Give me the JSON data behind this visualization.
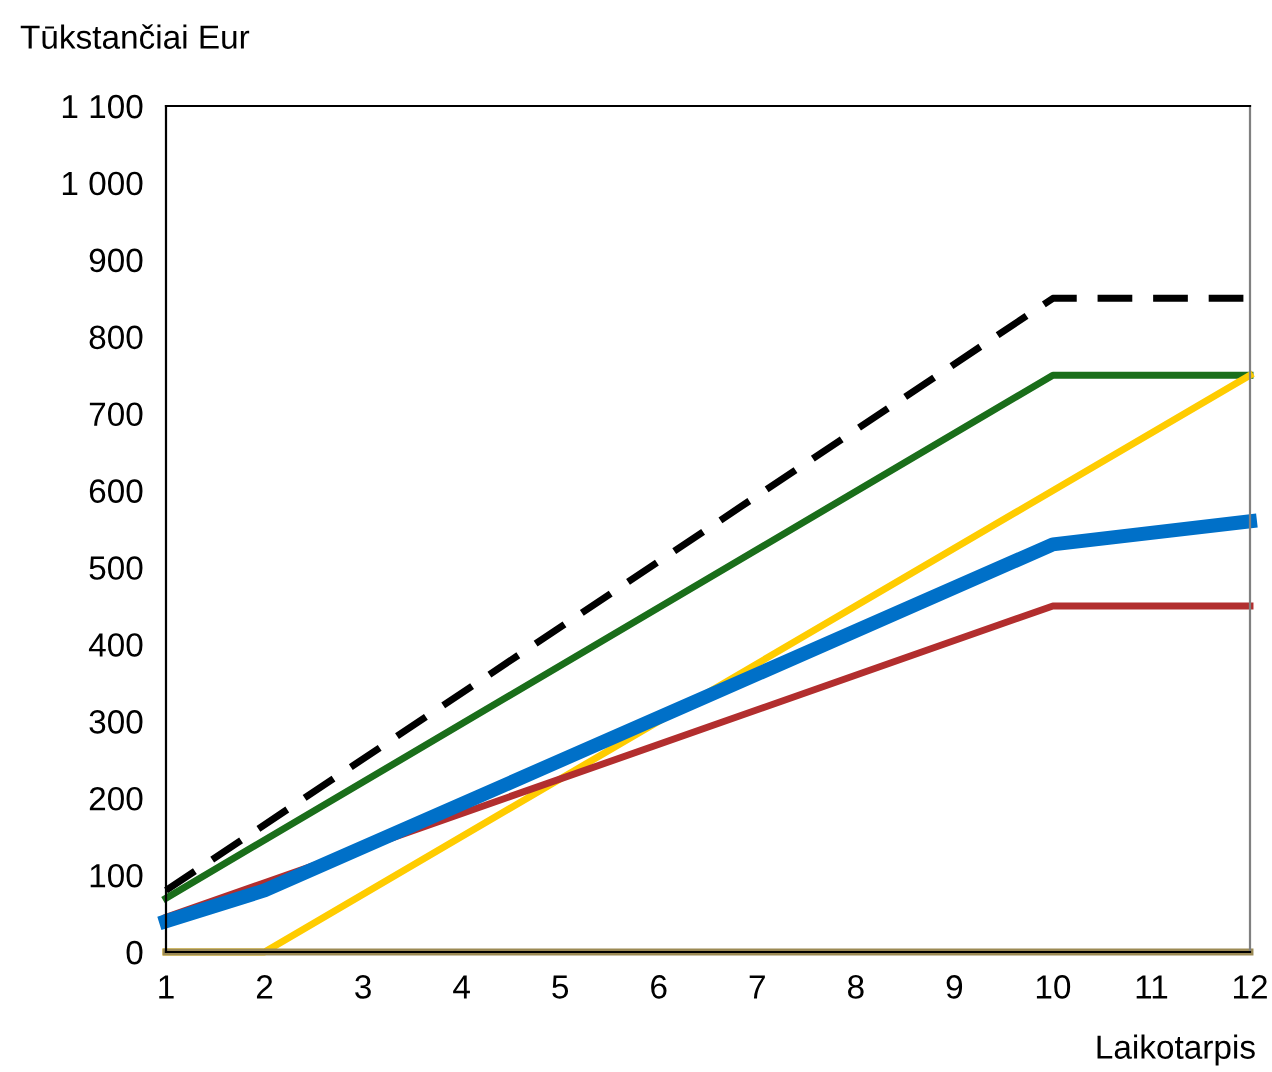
{
  "chart_data": {
    "type": "line",
    "ylabel": "Tūkstančiai Eur",
    "xlabel": "Laikotarpis",
    "xlim": [
      1,
      12
    ],
    "xticks": [
      1,
      2,
      3,
      4,
      5,
      6,
      7,
      8,
      9,
      10,
      11,
      12
    ],
    "ylim": [
      0,
      1100
    ],
    "yticks": [
      0,
      100,
      200,
      300,
      400,
      500,
      600,
      700,
      800,
      900,
      {
        "value": 1000,
        "label": "1 000"
      },
      {
        "value": 1100,
        "label": "1 100"
      }
    ],
    "grid": false,
    "legend": false,
    "marker": "none",
    "series": [
      {
        "color": "#000000",
        "line_style": "dashed",
        "x": [
          1,
          10,
          12
        ],
        "values": [
          80,
          850,
          850
        ]
      },
      {
        "color": "#1a6e1a",
        "x": [
          1,
          10,
          12
        ],
        "values": [
          70,
          750,
          750
        ]
      },
      {
        "color": "#ffcc00",
        "x": [
          1,
          2,
          12
        ],
        "values": [
          0,
          0,
          750
        ]
      },
      {
        "color": "#b22e2e",
        "x": [
          1,
          2,
          10,
          12
        ],
        "values": [
          45,
          90,
          450,
          450
        ]
      },
      {
        "color": "#0070c8",
        "x": [
          1,
          2,
          10,
          12
        ],
        "values": [
          40,
          80,
          530,
          560
        ]
      },
      {
        "color": "#9c8a55",
        "x": [
          1,
          12
        ],
        "values": [
          0,
          0
        ]
      }
    ]
  }
}
